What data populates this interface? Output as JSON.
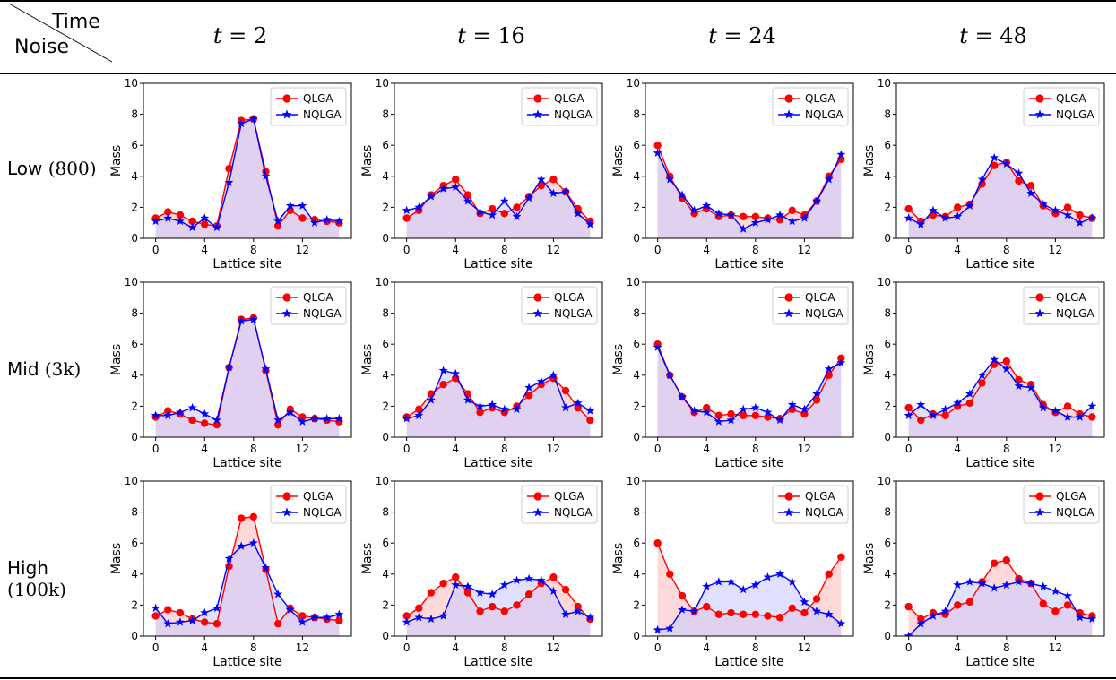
{
  "header": {
    "time": "Time",
    "noise": "Noise"
  },
  "columns": [
    {
      "var": "t",
      "eq": "= 2"
    },
    {
      "var": "t",
      "eq": "= 16"
    },
    {
      "var": "t",
      "eq": "= 24"
    },
    {
      "var": "t",
      "eq": "= 48"
    }
  ],
  "rows": [
    {
      "label": "Low",
      "paren": "(800)"
    },
    {
      "label": "Mid",
      "paren": "(3k)"
    },
    {
      "label": "High",
      "paren": "(100k)"
    }
  ],
  "colors": {
    "qlga": "#ff0000",
    "nqlga": "#0000ff",
    "qlga_fill": "#ffcccc",
    "nqlga_fill": "#ccccff",
    "overlap_fill": "#e2c7e4"
  },
  "chart_data": [
    {
      "type": "line",
      "row": "Low",
      "time": "t = 2",
      "xlabel": "Lattice site",
      "ylabel": "Mass",
      "xticks": [
        0,
        4,
        8,
        12
      ],
      "yticks": [
        0,
        2,
        4,
        6,
        8,
        10
      ],
      "ylim": [
        0,
        10
      ],
      "xlim": [
        -1,
        16
      ],
      "legend": "upper-right",
      "x": [
        0,
        1,
        2,
        3,
        4,
        5,
        6,
        7,
        8,
        9,
        10,
        11,
        12,
        13,
        14,
        15
      ],
      "series": [
        {
          "name": "QLGA",
          "values": [
            1.3,
            1.7,
            1.5,
            1.1,
            0.9,
            0.8,
            4.5,
            7.6,
            7.7,
            4.3,
            0.8,
            1.8,
            1.3,
            1.2,
            1.1,
            1.0
          ]
        },
        {
          "name": "NQLGA",
          "values": [
            1.1,
            1.3,
            1.1,
            0.7,
            1.3,
            0.7,
            3.6,
            7.4,
            7.7,
            4.0,
            1.1,
            2.1,
            2.1,
            1.0,
            1.2,
            1.1
          ]
        }
      ]
    },
    {
      "type": "line",
      "row": "Low",
      "time": "t = 16",
      "xlabel": "Lattice site",
      "ylabel": "Mass",
      "xticks": [
        0,
        4,
        8,
        12
      ],
      "yticks": [
        0,
        2,
        4,
        6,
        8,
        10
      ],
      "ylim": [
        0,
        10
      ],
      "xlim": [
        -1,
        16
      ],
      "legend": "upper-right",
      "x": [
        0,
        1,
        2,
        3,
        4,
        5,
        6,
        7,
        8,
        9,
        10,
        11,
        12,
        13,
        14,
        15
      ],
      "series": [
        {
          "name": "QLGA",
          "values": [
            1.3,
            1.8,
            2.8,
            3.4,
            3.8,
            2.8,
            1.6,
            1.9,
            1.6,
            2.0,
            2.7,
            3.4,
            3.8,
            3.0,
            1.9,
            1.1
          ]
        },
        {
          "name": "NQLGA",
          "values": [
            1.8,
            2.0,
            2.7,
            3.2,
            3.3,
            2.4,
            1.7,
            1.5,
            2.4,
            1.4,
            2.6,
            3.8,
            2.9,
            3.0,
            1.6,
            0.9
          ]
        }
      ]
    },
    {
      "type": "line",
      "row": "Low",
      "time": "t = 24",
      "xlabel": "Lattice site",
      "ylabel": "Mass",
      "xticks": [
        0,
        4,
        8,
        12
      ],
      "yticks": [
        0,
        2,
        4,
        6,
        8,
        10
      ],
      "ylim": [
        0,
        10
      ],
      "xlim": [
        -1,
        16
      ],
      "legend": "upper-right",
      "x": [
        0,
        1,
        2,
        3,
        4,
        5,
        6,
        7,
        8,
        9,
        10,
        11,
        12,
        13,
        14,
        15
      ],
      "series": [
        {
          "name": "QLGA",
          "values": [
            6.0,
            4.0,
            2.6,
            1.6,
            1.9,
            1.4,
            1.5,
            1.4,
            1.4,
            1.3,
            1.2,
            1.8,
            1.5,
            2.4,
            4.0,
            5.1
          ]
        },
        {
          "name": "NQLGA",
          "values": [
            5.5,
            3.8,
            2.8,
            1.8,
            2.1,
            1.6,
            1.5,
            0.6,
            1.0,
            1.2,
            1.5,
            1.1,
            1.3,
            2.4,
            3.8,
            5.4
          ]
        }
      ]
    },
    {
      "type": "line",
      "row": "Low",
      "time": "t = 48",
      "xlabel": "Lattice site",
      "ylabel": "Mass",
      "xticks": [
        0,
        4,
        8,
        12
      ],
      "yticks": [
        0,
        2,
        4,
        6,
        8,
        10
      ],
      "ylim": [
        0,
        10
      ],
      "xlim": [
        -1,
        16
      ],
      "legend": "upper-right",
      "x": [
        0,
        1,
        2,
        3,
        4,
        5,
        6,
        7,
        8,
        9,
        10,
        11,
        12,
        13,
        14,
        15
      ],
      "series": [
        {
          "name": "QLGA",
          "values": [
            1.9,
            1.1,
            1.5,
            1.4,
            2.0,
            2.2,
            3.5,
            4.7,
            4.9,
            3.7,
            3.4,
            2.1,
            1.6,
            2.0,
            1.5,
            1.3
          ]
        },
        {
          "name": "NQLGA",
          "values": [
            1.3,
            0.9,
            1.8,
            1.3,
            1.4,
            2.1,
            3.8,
            5.2,
            4.8,
            4.2,
            2.9,
            2.2,
            1.8,
            1.5,
            1.0,
            1.3
          ]
        }
      ]
    },
    {
      "type": "line",
      "row": "Mid",
      "time": "t = 2",
      "xlabel": "Lattice site",
      "ylabel": "Mass",
      "xticks": [
        0,
        4,
        8,
        12
      ],
      "yticks": [
        0,
        2,
        4,
        6,
        8,
        10
      ],
      "ylim": [
        0,
        10
      ],
      "xlim": [
        -1,
        16
      ],
      "legend": "upper-right",
      "x": [
        0,
        1,
        2,
        3,
        4,
        5,
        6,
        7,
        8,
        9,
        10,
        11,
        12,
        13,
        14,
        15
      ],
      "series": [
        {
          "name": "QLGA",
          "values": [
            1.3,
            1.7,
            1.5,
            1.1,
            0.9,
            0.8,
            4.5,
            7.6,
            7.7,
            4.3,
            0.8,
            1.8,
            1.3,
            1.2,
            1.1,
            1.0
          ]
        },
        {
          "name": "NQLGA",
          "values": [
            1.4,
            1.4,
            1.6,
            1.9,
            1.5,
            1.1,
            4.5,
            7.5,
            7.6,
            4.4,
            1.1,
            1.6,
            1.0,
            1.2,
            1.2,
            1.2
          ]
        }
      ]
    },
    {
      "type": "line",
      "row": "Mid",
      "time": "t = 16",
      "xlabel": "Lattice site",
      "ylabel": "Mass",
      "xticks": [
        0,
        4,
        8,
        12
      ],
      "yticks": [
        0,
        2,
        4,
        6,
        8,
        10
      ],
      "ylim": [
        0,
        10
      ],
      "xlim": [
        -1,
        16
      ],
      "legend": "upper-right",
      "x": [
        0,
        1,
        2,
        3,
        4,
        5,
        6,
        7,
        8,
        9,
        10,
        11,
        12,
        13,
        14,
        15
      ],
      "series": [
        {
          "name": "QLGA",
          "values": [
            1.3,
            1.8,
            2.8,
            3.4,
            3.8,
            2.8,
            1.6,
            1.9,
            1.6,
            2.0,
            2.7,
            3.4,
            3.8,
            3.0,
            1.9,
            1.1
          ]
        },
        {
          "name": "NQLGA",
          "values": [
            1.2,
            1.4,
            2.4,
            4.3,
            4.1,
            2.4,
            2.0,
            2.1,
            1.8,
            1.8,
            3.2,
            3.6,
            4.0,
            1.9,
            2.2,
            1.7
          ]
        }
      ]
    },
    {
      "type": "line",
      "row": "Mid",
      "time": "t = 24",
      "xlabel": "Lattice site",
      "ylabel": "Mass",
      "xticks": [
        0,
        4,
        8,
        12
      ],
      "yticks": [
        0,
        2,
        4,
        6,
        8,
        10
      ],
      "ylim": [
        0,
        10
      ],
      "xlim": [
        -1,
        16
      ],
      "legend": "upper-right",
      "x": [
        0,
        1,
        2,
        3,
        4,
        5,
        6,
        7,
        8,
        9,
        10,
        11,
        12,
        13,
        14,
        15
      ],
      "series": [
        {
          "name": "QLGA",
          "values": [
            6.0,
            4.0,
            2.6,
            1.6,
            1.9,
            1.4,
            1.5,
            1.4,
            1.4,
            1.3,
            1.2,
            1.8,
            1.5,
            2.4,
            4.0,
            5.1
          ]
        },
        {
          "name": "NQLGA",
          "values": [
            5.8,
            4.0,
            2.6,
            1.7,
            1.6,
            1.0,
            1.1,
            1.8,
            1.9,
            1.6,
            1.1,
            2.1,
            1.8,
            2.8,
            4.4,
            4.8
          ]
        }
      ]
    },
    {
      "type": "line",
      "row": "Mid",
      "time": "t = 48",
      "xlabel": "Lattice site",
      "ylabel": "Mass",
      "xticks": [
        0,
        4,
        8,
        12
      ],
      "yticks": [
        0,
        2,
        4,
        6,
        8,
        10
      ],
      "ylim": [
        0,
        10
      ],
      "xlim": [
        -1,
        16
      ],
      "legend": "upper-right",
      "x": [
        0,
        1,
        2,
        3,
        4,
        5,
        6,
        7,
        8,
        9,
        10,
        11,
        12,
        13,
        14,
        15
      ],
      "series": [
        {
          "name": "QLGA",
          "values": [
            1.9,
            1.1,
            1.5,
            1.4,
            2.0,
            2.2,
            3.5,
            4.7,
            4.9,
            3.7,
            3.4,
            2.1,
            1.6,
            2.0,
            1.5,
            1.3
          ]
        },
        {
          "name": "NQLGA",
          "values": [
            1.4,
            2.1,
            1.4,
            1.8,
            2.2,
            2.8,
            4.0,
            5.0,
            4.4,
            3.3,
            3.2,
            1.9,
            1.7,
            1.3,
            1.3,
            2.0
          ]
        }
      ]
    },
    {
      "type": "line",
      "row": "High",
      "time": "t = 2",
      "xlabel": "Lattice site",
      "ylabel": "Mass",
      "xticks": [
        0,
        4,
        8,
        12
      ],
      "yticks": [
        0,
        2,
        4,
        6,
        8,
        10
      ],
      "ylim": [
        0,
        10
      ],
      "xlim": [
        -1,
        16
      ],
      "legend": "upper-right",
      "x": [
        0,
        1,
        2,
        3,
        4,
        5,
        6,
        7,
        8,
        9,
        10,
        11,
        12,
        13,
        14,
        15
      ],
      "series": [
        {
          "name": "QLGA",
          "values": [
            1.3,
            1.7,
            1.5,
            1.1,
            0.9,
            0.8,
            4.5,
            7.6,
            7.7,
            4.3,
            0.8,
            1.8,
            1.3,
            1.2,
            1.1,
            1.0
          ]
        },
        {
          "name": "NQLGA",
          "values": [
            1.8,
            0.8,
            0.9,
            1.0,
            1.5,
            1.8,
            5.0,
            5.8,
            6.0,
            4.4,
            2.7,
            1.7,
            0.9,
            1.2,
            1.2,
            1.4
          ]
        }
      ]
    },
    {
      "type": "line",
      "row": "High",
      "time": "t = 16",
      "xlabel": "Lattice site",
      "ylabel": "Mass",
      "xticks": [
        0,
        4,
        8,
        12
      ],
      "yticks": [
        0,
        2,
        4,
        6,
        8,
        10
      ],
      "ylim": [
        0,
        10
      ],
      "xlim": [
        -1,
        16
      ],
      "legend": "upper-right",
      "x": [
        0,
        1,
        2,
        3,
        4,
        5,
        6,
        7,
        8,
        9,
        10,
        11,
        12,
        13,
        14,
        15
      ],
      "series": [
        {
          "name": "QLGA",
          "values": [
            1.3,
            1.8,
            2.8,
            3.4,
            3.8,
            2.8,
            1.6,
            1.9,
            1.6,
            2.0,
            2.7,
            3.4,
            3.8,
            3.0,
            1.9,
            1.1
          ]
        },
        {
          "name": "NQLGA",
          "values": [
            0.9,
            1.2,
            1.1,
            1.3,
            3.3,
            3.2,
            2.8,
            2.7,
            3.3,
            3.6,
            3.7,
            3.6,
            2.9,
            1.4,
            1.6,
            1.2
          ]
        }
      ]
    },
    {
      "type": "line",
      "row": "High",
      "time": "t = 24",
      "xlabel": "Lattice site",
      "ylabel": "Mass",
      "xticks": [
        0,
        4,
        8,
        12
      ],
      "yticks": [
        0,
        2,
        4,
        6,
        8,
        10
      ],
      "ylim": [
        0,
        10
      ],
      "xlim": [
        -1,
        16
      ],
      "legend": "upper-right",
      "x": [
        0,
        1,
        2,
        3,
        4,
        5,
        6,
        7,
        8,
        9,
        10,
        11,
        12,
        13,
        14,
        15
      ],
      "series": [
        {
          "name": "QLGA",
          "values": [
            6.0,
            4.0,
            2.6,
            1.6,
            1.9,
            1.4,
            1.5,
            1.4,
            1.4,
            1.3,
            1.2,
            1.8,
            1.5,
            2.4,
            4.0,
            5.1
          ]
        },
        {
          "name": "NQLGA",
          "values": [
            0.4,
            0.5,
            1.7,
            1.6,
            3.2,
            3.5,
            3.5,
            3.0,
            3.3,
            3.8,
            4.0,
            3.5,
            2.2,
            1.6,
            1.4,
            0.8
          ]
        }
      ]
    },
    {
      "type": "line",
      "row": "High",
      "time": "t = 48",
      "xlabel": "Lattice site",
      "ylabel": "Mass",
      "xticks": [
        0,
        4,
        8,
        12
      ],
      "yticks": [
        0,
        2,
        4,
        6,
        8,
        10
      ],
      "ylim": [
        0,
        10
      ],
      "xlim": [
        -1,
        16
      ],
      "legend": "upper-right",
      "x": [
        0,
        1,
        2,
        3,
        4,
        5,
        6,
        7,
        8,
        9,
        10,
        11,
        12,
        13,
        14,
        15
      ],
      "series": [
        {
          "name": "QLGA",
          "values": [
            1.9,
            1.1,
            1.5,
            1.4,
            2.0,
            2.2,
            3.5,
            4.7,
            4.9,
            3.7,
            3.4,
            2.1,
            1.6,
            2.0,
            1.5,
            1.3
          ]
        },
        {
          "name": "NQLGA",
          "values": [
            0.0,
            0.8,
            1.3,
            1.6,
            3.3,
            3.5,
            3.4,
            3.1,
            3.3,
            3.5,
            3.4,
            3.2,
            2.9,
            2.6,
            1.2,
            1.1
          ]
        }
      ]
    }
  ]
}
